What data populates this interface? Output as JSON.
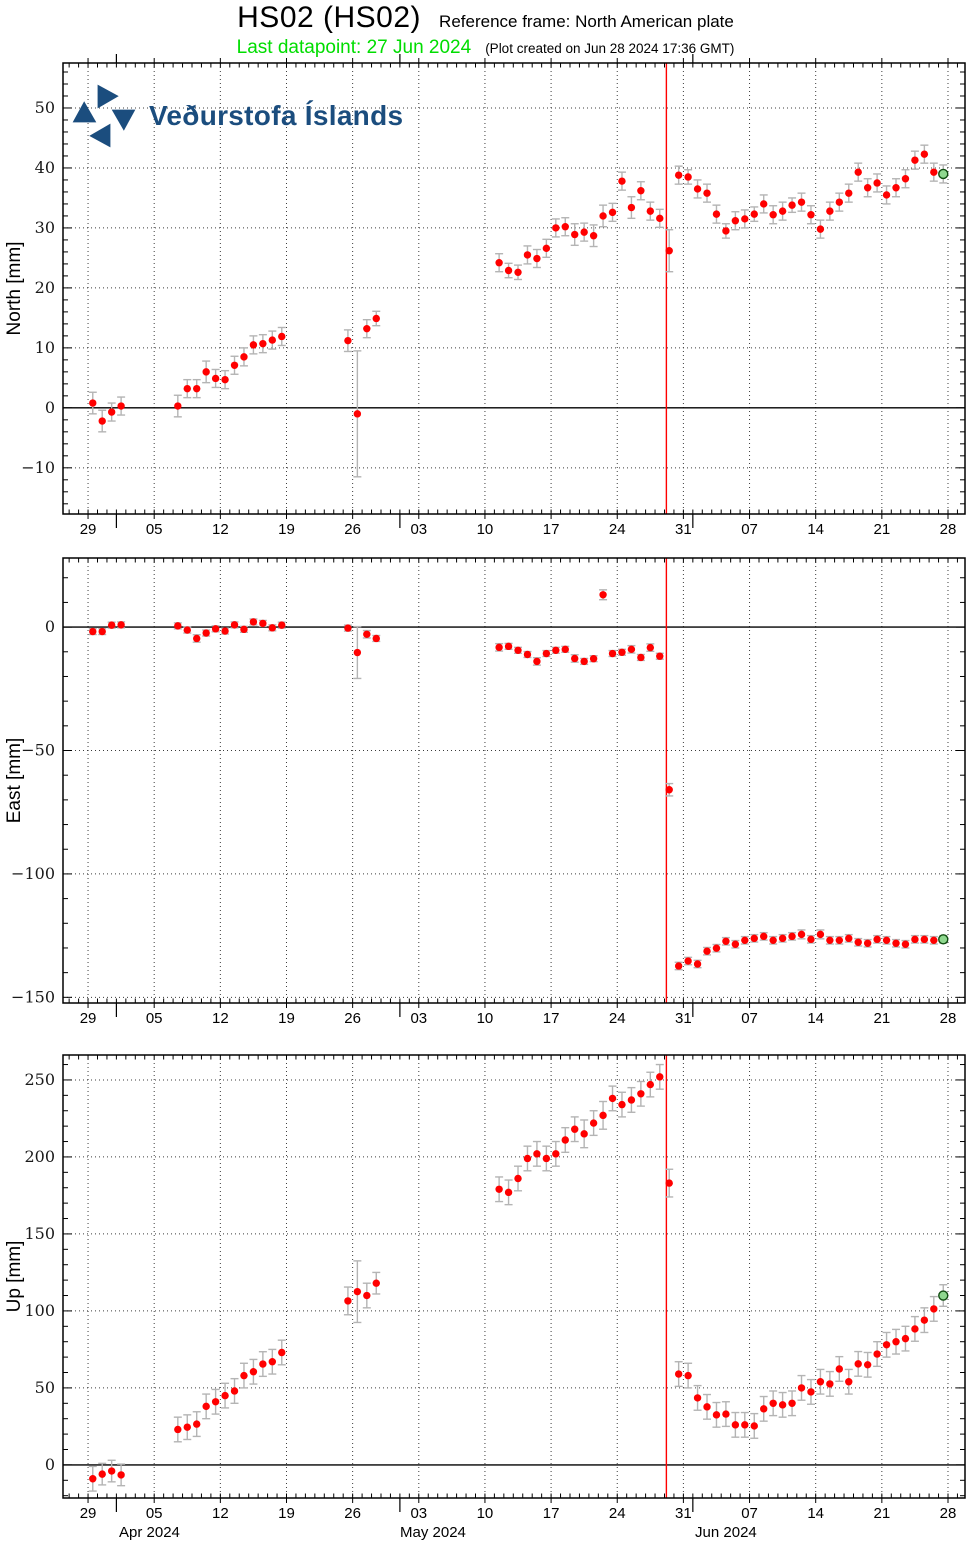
{
  "header": {
    "title": "HS02 (HS02)",
    "reference_frame": "Reference frame: North American plate",
    "last_datapoint": "Last datapoint: 27 Jun 2024",
    "created_note": "(Plot created on Jun 28 2024 17:36 GMT)"
  },
  "logo": {
    "text": "Veðurstofa Íslands"
  },
  "colors": {
    "point": "#ff0000",
    "error_bar": "#b4b4b4",
    "last_point_fill": "#8fd88f",
    "last_point_stroke": "#114d11",
    "event_line": "#ff0000",
    "logo_blue": "#1b4d7e",
    "last_datapoint_text": "#00dd00",
    "grid_dot": "#3c3c3c"
  },
  "x_axis": {
    "day0_date": "29 Mar 2024",
    "domain": [
      -2.65,
      92.8
    ],
    "ticks": [
      [
        0,
        "29"
      ],
      [
        7,
        "05"
      ],
      [
        14,
        "12"
      ],
      [
        21,
        "19"
      ],
      [
        28,
        "26"
      ],
      [
        35,
        "03"
      ],
      [
        42,
        "10"
      ],
      [
        49,
        "17"
      ],
      [
        56,
        "24"
      ],
      [
        63,
        "31"
      ],
      [
        70,
        "07"
      ],
      [
        77,
        "14"
      ],
      [
        84,
        "21"
      ],
      [
        91,
        "28"
      ]
    ],
    "month_start_days": [
      3,
      33,
      64
    ],
    "month_labels": [
      {
        "label": "Apr 2024",
        "day": 6.5
      },
      {
        "label": "May 2024",
        "day": 36.5
      },
      {
        "label": "Jun 2024",
        "day": 67.5
      }
    ],
    "event_day": 61.2
  },
  "chart_data": [
    {
      "type": "scatter",
      "id": "north",
      "ylabel": "North [mm]",
      "ylim": [
        -17.7,
        57.5
      ],
      "yticks": [
        -10,
        0,
        10,
        20,
        30,
        40,
        50
      ],
      "y_minor_step": 2,
      "last_point_green": true,
      "points": [
        [
          0,
          0.8,
          1.8
        ],
        [
          1,
          -2.2,
          1.8
        ],
        [
          2,
          -0.7,
          1.5
        ],
        [
          3,
          0.3,
          1.5
        ],
        [
          9,
          0.3,
          1.8
        ],
        [
          10,
          3.2,
          1.5
        ],
        [
          11,
          3.2,
          1.5
        ],
        [
          12,
          6.0,
          1.8
        ],
        [
          13,
          4.9,
          1.5
        ],
        [
          14,
          4.7,
          1.5
        ],
        [
          15,
          7.1,
          1.5
        ],
        [
          16,
          8.5,
          1.5
        ],
        [
          17,
          10.5,
          1.5
        ],
        [
          18,
          10.7,
          1.5
        ],
        [
          19,
          11.3,
          1.5
        ],
        [
          20,
          11.9,
          1.5
        ],
        [
          27,
          11.2,
          1.8
        ],
        [
          28,
          -1.0,
          10.5
        ],
        [
          29,
          13.2,
          1.5
        ],
        [
          30,
          14.9,
          1.2
        ],
        [
          43,
          24.2,
          1.5
        ],
        [
          44,
          22.9,
          1.2
        ],
        [
          45,
          22.6,
          1.2
        ],
        [
          46,
          25.5,
          1.5
        ],
        [
          47,
          24.9,
          1.5
        ],
        [
          48,
          26.6,
          1.5
        ],
        [
          49,
          30.0,
          1.5
        ],
        [
          50,
          30.2,
          1.5
        ],
        [
          51,
          28.9,
          1.8
        ],
        [
          52,
          29.3,
          1.5
        ],
        [
          53,
          28.7,
          1.8
        ],
        [
          54,
          32.0,
          1.8
        ],
        [
          55,
          32.6,
          1.5
        ],
        [
          56,
          37.8,
          1.5
        ],
        [
          57,
          33.4,
          1.8
        ],
        [
          58,
          36.2,
          1.5
        ],
        [
          59,
          32.8,
          1.5
        ],
        [
          60,
          31.6,
          1.5
        ],
        [
          61,
          26.2,
          3.5
        ],
        [
          62,
          38.8,
          1.5
        ],
        [
          63,
          38.5,
          1.2
        ],
        [
          64,
          36.5,
          1.5
        ],
        [
          65,
          35.8,
          1.5
        ],
        [
          66,
          32.3,
          1.5
        ],
        [
          67,
          29.5,
          1.2
        ],
        [
          68,
          31.2,
          1.5
        ],
        [
          69,
          31.5,
          1.5
        ],
        [
          70,
          32.3,
          1.2
        ],
        [
          71,
          34.0,
          1.5
        ],
        [
          72,
          32.2,
          1.5
        ],
        [
          73,
          32.8,
          1.5
        ],
        [
          74,
          33.8,
          1.2
        ],
        [
          75,
          34.3,
          1.5
        ],
        [
          76,
          32.2,
          1.5
        ],
        [
          77,
          29.8,
          1.5
        ],
        [
          78,
          32.8,
          1.5
        ],
        [
          79,
          34.3,
          1.5
        ],
        [
          80,
          35.8,
          1.5
        ],
        [
          81,
          39.3,
          1.5
        ],
        [
          82,
          36.7,
          1.5
        ],
        [
          83,
          37.5,
          1.5
        ],
        [
          84,
          35.5,
          1.5
        ],
        [
          85,
          36.7,
          1.5
        ],
        [
          86,
          38.2,
          1.5
        ],
        [
          87,
          41.3,
          1.5
        ],
        [
          88,
          42.3,
          1.5
        ],
        [
          89,
          39.3,
          1.5
        ],
        [
          90,
          39.0,
          1.5
        ]
      ]
    },
    {
      "type": "scatter",
      "id": "east",
      "ylabel": "East [mm]",
      "ylim": [
        -152.3,
        28.0
      ],
      "yticks": [
        0,
        -50,
        -100,
        -150
      ],
      "y_minor_step": 10,
      "last_point_green": true,
      "points": [
        [
          0,
          -1.8,
          1.2
        ],
        [
          1,
          -1.8,
          1.2
        ],
        [
          2,
          0.8,
          1.2
        ],
        [
          3,
          0.9,
          1.2
        ],
        [
          9,
          0.5,
          1.2
        ],
        [
          10,
          -1.2,
          1.2
        ],
        [
          11,
          -4.6,
          1.5
        ],
        [
          12,
          -2.4,
          1.2
        ],
        [
          13,
          -0.7,
          1.2
        ],
        [
          14,
          -1.6,
          1.2
        ],
        [
          15,
          0.9,
          1.2
        ],
        [
          16,
          -0.9,
          1.2
        ],
        [
          17,
          2.1,
          1.2
        ],
        [
          18,
          1.5,
          1.2
        ],
        [
          19,
          -0.3,
          1.2
        ],
        [
          20,
          0.8,
          1.2
        ],
        [
          27,
          -0.4,
          1.2
        ],
        [
          28,
          -10.3,
          10.5
        ],
        [
          29,
          -2.9,
          1.5
        ],
        [
          30,
          -4.6,
          1.2
        ],
        [
          43,
          -8.2,
          1.5
        ],
        [
          44,
          -7.8,
          1.2
        ],
        [
          45,
          -9.4,
          1.2
        ],
        [
          46,
          -11.1,
          1.2
        ],
        [
          47,
          -13.9,
          1.5
        ],
        [
          48,
          -10.7,
          1.2
        ],
        [
          49,
          -9.4,
          1.2
        ],
        [
          50,
          -9.0,
          1.2
        ],
        [
          51,
          -12.7,
          1.5
        ],
        [
          52,
          -13.9,
          1.2
        ],
        [
          53,
          -12.8,
          1.2
        ],
        [
          54,
          13.1,
          2.0
        ],
        [
          55,
          -10.7,
          1.2
        ],
        [
          56,
          -10.2,
          1.2
        ],
        [
          57,
          -9.0,
          1.5
        ],
        [
          58,
          -12.3,
          1.2
        ],
        [
          59,
          -8.3,
          1.5
        ],
        [
          60,
          -11.8,
          1.2
        ],
        [
          61,
          -65.9,
          2.5
        ],
        [
          62,
          -137.3,
          1.5
        ],
        [
          63,
          -135.3,
          1.5
        ],
        [
          64,
          -136.5,
          1.5
        ],
        [
          65,
          -131.3,
          1.5
        ],
        [
          66,
          -130.1,
          1.5
        ],
        [
          67,
          -127.3,
          1.5
        ],
        [
          68,
          -128.5,
          1.5
        ],
        [
          69,
          -126.9,
          1.5
        ],
        [
          70,
          -126.1,
          1.5
        ],
        [
          71,
          -125.3,
          1.5
        ],
        [
          72,
          -126.9,
          1.5
        ],
        [
          73,
          -126.1,
          1.5
        ],
        [
          74,
          -125.3,
          1.5
        ],
        [
          75,
          -124.5,
          1.8
        ],
        [
          76,
          -126.5,
          1.5
        ],
        [
          77,
          -124.5,
          1.8
        ],
        [
          78,
          -126.9,
          1.5
        ],
        [
          79,
          -126.9,
          1.5
        ],
        [
          80,
          -126.1,
          1.5
        ],
        [
          81,
          -127.7,
          1.5
        ],
        [
          82,
          -128.1,
          1.5
        ],
        [
          83,
          -126.5,
          1.5
        ],
        [
          84,
          -126.9,
          1.5
        ],
        [
          85,
          -128.1,
          1.5
        ],
        [
          86,
          -128.5,
          1.5
        ],
        [
          87,
          -126.5,
          1.5
        ],
        [
          88,
          -126.5,
          1.5
        ],
        [
          89,
          -126.9,
          1.5
        ],
        [
          90,
          -126.5,
          1.5
        ]
      ]
    },
    {
      "type": "scatter",
      "id": "up",
      "ylabel": "Up [mm]",
      "ylim": [
        -21.5,
        266.2
      ],
      "yticks": [
        0,
        50,
        100,
        150,
        200,
        250
      ],
      "y_minor_step": 10,
      "last_point_green": true,
      "points": [
        [
          0,
          -9,
          8
        ],
        [
          1,
          -6,
          7
        ],
        [
          2,
          -4,
          7
        ],
        [
          3,
          -6.5,
          7
        ],
        [
          9,
          23,
          8
        ],
        [
          10,
          24.5,
          8
        ],
        [
          11,
          26.5,
          8
        ],
        [
          12,
          38,
          8
        ],
        [
          13,
          41,
          8
        ],
        [
          14,
          45,
          8
        ],
        [
          15,
          48,
          8
        ],
        [
          16,
          58,
          8
        ],
        [
          17,
          60.5,
          8
        ],
        [
          18,
          65.5,
          8
        ],
        [
          19,
          67,
          8
        ],
        [
          20,
          73,
          8
        ],
        [
          27,
          106.5,
          9
        ],
        [
          28,
          112.5,
          20
        ],
        [
          29,
          110,
          8
        ],
        [
          30,
          118,
          7
        ],
        [
          43,
          179,
          8
        ],
        [
          44,
          177,
          8
        ],
        [
          45,
          186,
          8
        ],
        [
          46,
          199,
          8
        ],
        [
          47,
          202,
          8
        ],
        [
          48,
          199,
          8
        ],
        [
          49,
          202,
          8
        ],
        [
          50,
          211,
          8
        ],
        [
          51,
          218,
          8
        ],
        [
          52,
          215,
          9
        ],
        [
          53,
          222,
          8
        ],
        [
          54,
          227,
          9
        ],
        [
          55,
          238,
          8
        ],
        [
          56,
          234,
          8
        ],
        [
          57,
          237,
          8
        ],
        [
          58,
          241,
          8
        ],
        [
          59,
          247,
          8
        ],
        [
          60,
          252,
          8
        ],
        [
          61,
          183,
          9
        ],
        [
          62,
          59,
          8
        ],
        [
          63,
          58,
          8
        ],
        [
          64,
          43.5,
          8
        ],
        [
          65,
          37.7,
          8
        ],
        [
          66,
          32.5,
          8
        ],
        [
          67,
          33,
          8
        ],
        [
          68,
          26,
          8
        ],
        [
          69,
          26,
          8
        ],
        [
          70,
          25.3,
          8
        ],
        [
          71,
          36.4,
          8
        ],
        [
          72,
          40,
          8
        ],
        [
          73,
          39,
          8
        ],
        [
          74,
          40,
          8
        ],
        [
          75,
          50,
          8
        ],
        [
          76,
          47.4,
          8
        ],
        [
          77,
          54,
          8
        ],
        [
          78,
          52.6,
          8
        ],
        [
          79,
          62.3,
          8
        ],
        [
          80,
          54,
          8
        ],
        [
          81,
          65.6,
          8
        ],
        [
          82,
          65,
          8
        ],
        [
          83,
          72,
          8
        ],
        [
          84,
          78,
          8
        ],
        [
          85,
          80,
          8
        ],
        [
          86,
          82,
          8
        ],
        [
          87,
          88.3,
          8
        ],
        [
          88,
          94,
          8
        ],
        [
          89,
          101.3,
          8
        ],
        [
          90,
          110,
          7
        ]
      ]
    }
  ]
}
